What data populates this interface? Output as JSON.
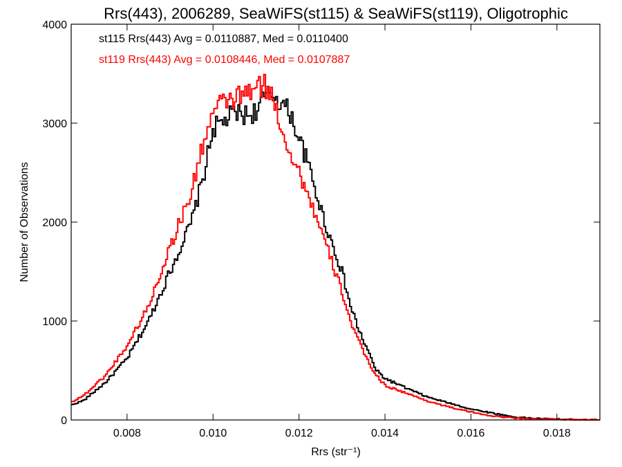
{
  "chart_data": {
    "type": "line",
    "style": "step-histogram",
    "title": "Rrs(443), 2006289, SeaWiFS(st115) & SeaWiFS(st119), Oligotrophic",
    "xlabel": "Rrs (str⁻¹)",
    "ylabel": "Number of Observations",
    "xlim": [
      0.0067,
      0.019
    ],
    "ylim": [
      0,
      4000
    ],
    "grid": false,
    "x_ticks": [
      0.008,
      0.01,
      0.012,
      0.014,
      0.016,
      0.018
    ],
    "x_tick_labels": [
      "0.008",
      "0.010",
      "0.012",
      "0.014",
      "0.016",
      "0.018"
    ],
    "y_ticks": [
      0,
      1000,
      2000,
      3000,
      4000
    ],
    "y_tick_labels": [
      "0",
      "1000",
      "2000",
      "3000",
      "4000"
    ],
    "series": [
      {
        "name": "st115",
        "label": "st115 Rrs(443) Avg = 0.0110887, Med = 0.0110400",
        "color": "#000000",
        "points": [
          [
            0.0067,
            150
          ],
          [
            0.007,
            200
          ],
          [
            0.0075,
            380
          ],
          [
            0.008,
            620
          ],
          [
            0.0085,
            1000
          ],
          [
            0.009,
            1500
          ],
          [
            0.0095,
            2000
          ],
          [
            0.0098,
            2500
          ],
          [
            0.01,
            2950
          ],
          [
            0.0102,
            3000
          ],
          [
            0.0105,
            3100
          ],
          [
            0.0108,
            3080
          ],
          [
            0.011,
            3120
          ],
          [
            0.0112,
            3250
          ],
          [
            0.0114,
            3300
          ],
          [
            0.0116,
            3200
          ],
          [
            0.0118,
            3100
          ],
          [
            0.012,
            2850
          ],
          [
            0.0122,
            2600
          ],
          [
            0.0124,
            2300
          ],
          [
            0.0126,
            2000
          ],
          [
            0.0128,
            1750
          ],
          [
            0.013,
            1500
          ],
          [
            0.0132,
            1150
          ],
          [
            0.0134,
            900
          ],
          [
            0.0136,
            700
          ],
          [
            0.0138,
            500
          ],
          [
            0.014,
            420
          ],
          [
            0.0145,
            320
          ],
          [
            0.015,
            230
          ],
          [
            0.0155,
            170
          ],
          [
            0.016,
            110
          ],
          [
            0.0165,
            70
          ],
          [
            0.017,
            30
          ],
          [
            0.0175,
            15
          ],
          [
            0.018,
            8
          ],
          [
            0.0185,
            3
          ],
          [
            0.019,
            0
          ]
        ]
      },
      {
        "name": "st119",
        "label": "st119 Rrs(443) Avg = 0.0108446, Med = 0.0107887",
        "color": "#ff0000",
        "points": [
          [
            0.0067,
            180
          ],
          [
            0.007,
            250
          ],
          [
            0.0075,
            450
          ],
          [
            0.008,
            750
          ],
          [
            0.0085,
            1150
          ],
          [
            0.009,
            1750
          ],
          [
            0.0095,
            2300
          ],
          [
            0.0098,
            2850
          ],
          [
            0.01,
            3100
          ],
          [
            0.0102,
            3200
          ],
          [
            0.0105,
            3250
          ],
          [
            0.0108,
            3300
          ],
          [
            0.011,
            3350
          ],
          [
            0.0112,
            3380
          ],
          [
            0.0114,
            3250
          ],
          [
            0.0116,
            2950
          ],
          [
            0.0118,
            2700
          ],
          [
            0.012,
            2500
          ],
          [
            0.0122,
            2300
          ],
          [
            0.0124,
            2050
          ],
          [
            0.0126,
            1800
          ],
          [
            0.0128,
            1550
          ],
          [
            0.013,
            1300
          ],
          [
            0.0132,
            1000
          ],
          [
            0.0134,
            780
          ],
          [
            0.0136,
            600
          ],
          [
            0.0138,
            450
          ],
          [
            0.014,
            350
          ],
          [
            0.0145,
            270
          ],
          [
            0.015,
            190
          ],
          [
            0.0155,
            130
          ],
          [
            0.016,
            80
          ],
          [
            0.0165,
            40
          ],
          [
            0.017,
            20
          ],
          [
            0.0175,
            10
          ],
          [
            0.018,
            5
          ],
          [
            0.0185,
            2
          ],
          [
            0.019,
            0
          ]
        ]
      }
    ]
  }
}
